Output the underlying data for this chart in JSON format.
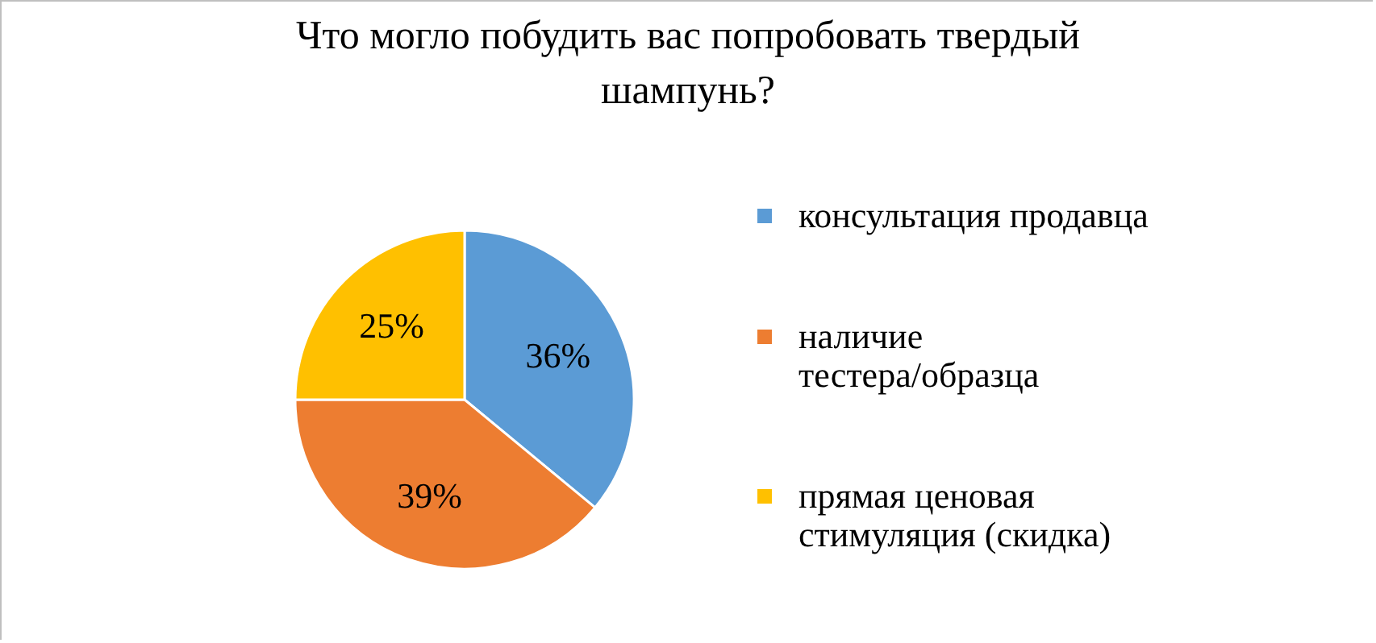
{
  "chart_data": {
    "type": "pie",
    "title": "Что могло побудить вас попробовать твердый шампунь?",
    "categories": [
      "консультация продавца",
      "наличие тестера/образца",
      "прямая ценовая стимуляция (скидка)"
    ],
    "values": [
      36,
      39,
      25
    ],
    "colors": [
      "#5b9bd5",
      "#ed7d31",
      "#ffc000"
    ],
    "value_labels": [
      "36%",
      "39%",
      "25%"
    ],
    "legend": "right"
  }
}
